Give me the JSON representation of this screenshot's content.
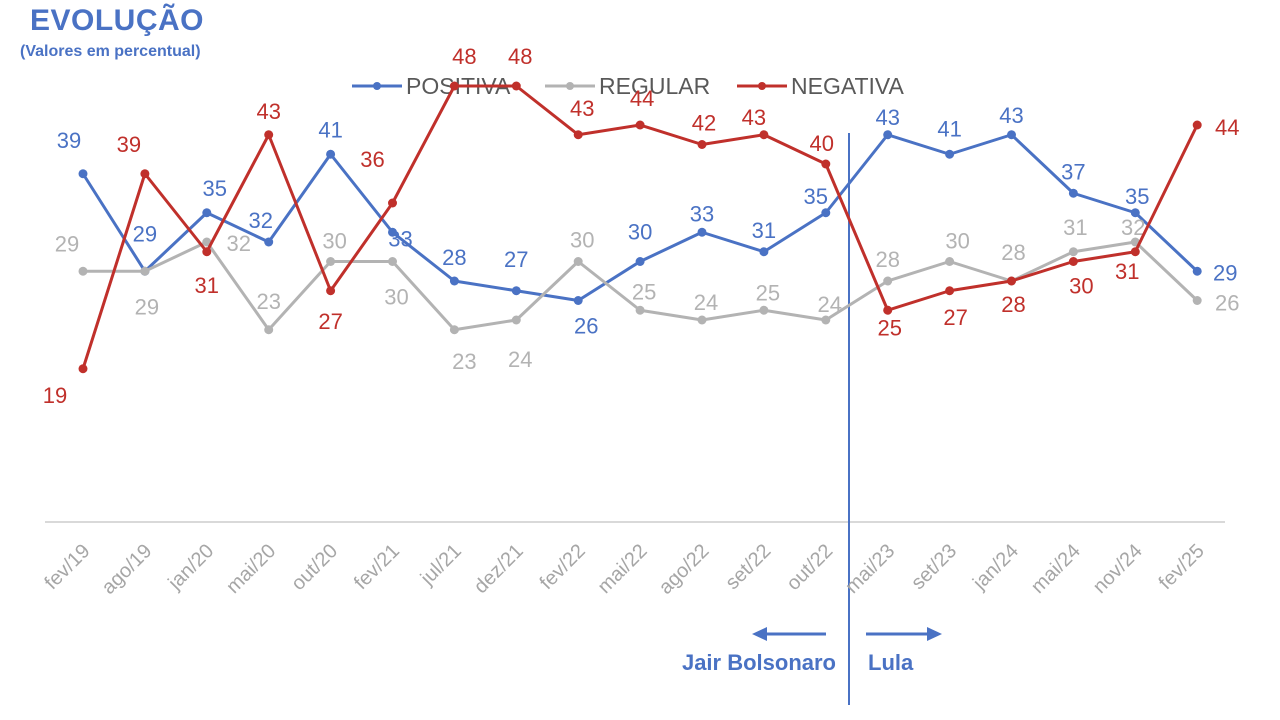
{
  "header": {
    "title": "EVOLUÇÃO",
    "subtitle": "(Valores em percentual)"
  },
  "chart_data": {
    "type": "line",
    "categories": [
      "fev/19",
      "ago/19",
      "jan/20",
      "mai/20",
      "out/20",
      "fev/21",
      "jul/21",
      "dez/21",
      "fev/22",
      "mai/22",
      "ago/22",
      "set/22",
      "out/22",
      "mai/23",
      "set/23",
      "jan/24",
      "mai/24",
      "nov/24",
      "fev/25"
    ],
    "series": [
      {
        "name": "POSITIVA",
        "color": "#4a72c4",
        "values": [
          39,
          29,
          35,
          32,
          41,
          33,
          28,
          27,
          26,
          30,
          33,
          31,
          35,
          43,
          41,
          43,
          37,
          35,
          29
        ],
        "labels": [
          "39",
          "29",
          "35",
          "32",
          "41",
          "33",
          "28",
          "27",
          "26",
          "30",
          "33",
          "31",
          "35",
          "43",
          "41",
          "43",
          "37",
          "35",
          "29"
        ]
      },
      {
        "name": "REGULAR",
        "color": "#b3b3b3",
        "values": [
          29,
          29,
          32,
          23,
          30,
          30,
          23,
          24,
          30,
          25,
          24,
          25,
          24,
          28,
          30,
          28,
          31,
          32,
          26
        ],
        "labels": [
          "29",
          "29",
          "32",
          "23",
          "30",
          "30",
          "23",
          "24",
          "30",
          "25",
          "24",
          "25",
          "24",
          "28",
          "30",
          "28",
          "31",
          "32",
          "26"
        ]
      },
      {
        "name": "NEGATIVA",
        "color": "#c0302b",
        "values": [
          19,
          39,
          31,
          43,
          27,
          36,
          48,
          48,
          43,
          44,
          42,
          43,
          40,
          25,
          27,
          28,
          30,
          31,
          44
        ],
        "labels": [
          "19",
          "39",
          "31",
          "43",
          "27",
          "36",
          "48",
          "48",
          "43",
          "44",
          "42",
          "43",
          "40",
          "25",
          "27",
          "28",
          "30",
          "31",
          "44"
        ]
      }
    ],
    "ylim": [
      10,
      54
    ],
    "legend_position": "top-center",
    "annotations": {
      "divider_between": [
        "out/22",
        "mai/23"
      ],
      "left_label": "Jair Bolsonaro",
      "right_label": "Lula",
      "arrow_color": "#4a72c4"
    }
  }
}
